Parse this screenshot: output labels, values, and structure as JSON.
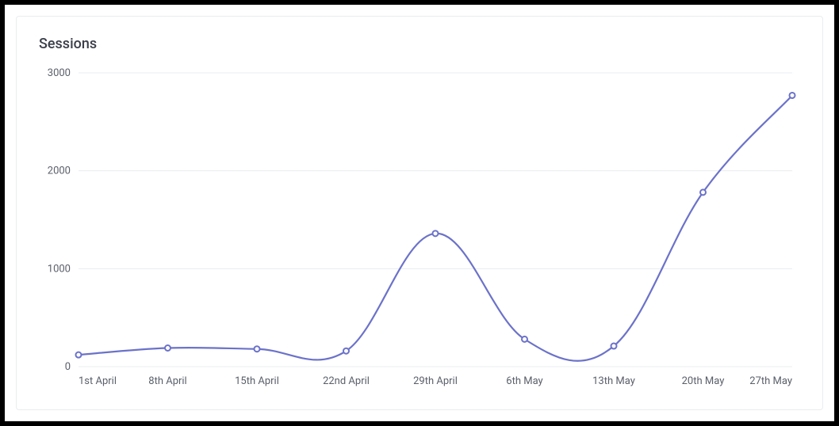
{
  "card": {
    "title": "Sessions"
  },
  "sessions_chart": {
    "type": "line",
    "categories": [
      "1st April",
      "8th April",
      "15th April",
      "22nd April",
      "29th April",
      "6th May",
      "13th May",
      "20th May",
      "27th May"
    ],
    "values": [
      120,
      190,
      180,
      160,
      1360,
      280,
      210,
      1780,
      2770
    ],
    "ylim": [
      0,
      3000
    ],
    "ytick_step": 1000,
    "line_color": "#6b72c9",
    "marker_stroke": "#6b72c9",
    "marker_fill": "#ffffff",
    "marker_radius": 3.5,
    "line_width": 2.2,
    "grid_color": "#e9ecef",
    "background_color": "#ffffff",
    "axis_label_color": "#5a5f6a",
    "axis_label_fontsize": 13,
    "title_color": "#3b3f4a",
    "title_fontsize": 18,
    "smooth": true
  }
}
